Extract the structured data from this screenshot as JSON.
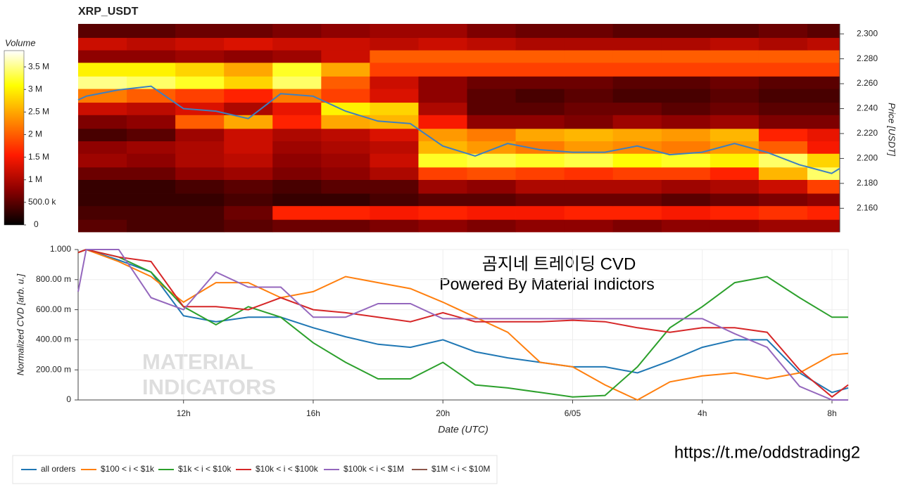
{
  "chart_data": [
    {
      "type": "heatmap",
      "title": "XRP_USDT",
      "ylabel": "Price [USDT]",
      "xlim": [
        8.75,
        32.25
      ],
      "ylim": [
        2.141,
        2.308
      ],
      "yticks": [
        {
          "value": 2.16,
          "label": "2.160"
        },
        {
          "value": 2.18,
          "label": "2.180"
        },
        {
          "value": 2.2,
          "label": "2.200"
        },
        {
          "value": 2.22,
          "label": "2.220"
        },
        {
          "value": 2.24,
          "label": "2.240"
        },
        {
          "value": 2.26,
          "label": "2.260"
        },
        {
          "value": 2.28,
          "label": "2.280"
        },
        {
          "value": 2.3,
          "label": "2.300"
        }
      ],
      "xbins": [
        8.75,
        10.25,
        11.75,
        13.25,
        14.75,
        16.25,
        17.75,
        19.25,
        20.75,
        22.25,
        23.75,
        25.25,
        26.75,
        28.25,
        29.75,
        31.25,
        32.25
      ],
      "ybins": [
        2.141,
        2.151,
        2.162,
        2.172,
        2.183,
        2.193,
        2.204,
        2.214,
        2.224,
        2.235,
        2.245,
        2.256,
        2.266,
        2.277,
        2.287,
        2.297,
        2.308
      ],
      "z": [
        [
          500000,
          400000,
          400000,
          500000,
          600000,
          600000,
          700000,
          800000,
          700000,
          800000,
          800000,
          700000,
          800000,
          800000,
          900000,
          900000
        ],
        [
          400000,
          400000,
          400000,
          600000,
          1600000,
          1600000,
          1500000,
          1600000,
          1500000,
          1500000,
          1600000,
          1600000,
          1500000,
          1600000,
          1700000,
          1600000
        ],
        [
          300000,
          300000,
          300000,
          400000,
          300000,
          300000,
          400000,
          500000,
          500000,
          600000,
          600000,
          600000,
          500000,
          600000,
          700000,
          800000
        ],
        [
          300000,
          300000,
          400000,
          500000,
          400000,
          500000,
          500000,
          900000,
          800000,
          1000000,
          1000000,
          1000000,
          900000,
          1000000,
          1200000,
          1800000
        ],
        [
          600000,
          600000,
          800000,
          900000,
          700000,
          800000,
          1000000,
          1800000,
          1900000,
          1800000,
          1700000,
          1800000,
          1800000,
          1600000,
          2600000,
          3400000
        ],
        [
          900000,
          800000,
          1000000,
          1100000,
          800000,
          900000,
          1200000,
          3200000,
          3300000,
          3200000,
          3300000,
          3100000,
          3200000,
          3000000,
          3400000,
          2800000
        ],
        [
          800000,
          900000,
          1000000,
          1200000,
          900000,
          1000000,
          1100000,
          2600000,
          2400000,
          2200000,
          2400000,
          2300000,
          2200000,
          2400000,
          2000000,
          1500000
        ],
        [
          400000,
          500000,
          900000,
          1200000,
          1000000,
          1100000,
          1300000,
          2400000,
          2200000,
          2500000,
          2600000,
          2500000,
          2400000,
          2600000,
          1600000,
          1400000
        ],
        [
          700000,
          800000,
          2000000,
          2500000,
          1600000,
          2500000,
          2600000,
          1500000,
          800000,
          800000,
          700000,
          900000,
          800000,
          900000,
          700000,
          700000
        ],
        [
          1200000,
          1100000,
          1300000,
          1000000,
          1400000,
          3000000,
          2800000,
          1000000,
          500000,
          500000,
          600000,
          600000,
          500000,
          600000,
          500000,
          500000
        ],
        [
          2200000,
          2000000,
          1800000,
          1600000,
          2200000,
          1800000,
          1300000,
          800000,
          500000,
          400000,
          500000,
          400000,
          400000,
          500000,
          400000,
          400000
        ],
        [
          3500000,
          3400000,
          3200000,
          2800000,
          3400000,
          2000000,
          1200000,
          800000,
          600000,
          600000,
          600000,
          500000,
          500000,
          600000,
          500000,
          500000
        ],
        [
          3000000,
          3000000,
          2800000,
          2500000,
          3200000,
          2500000,
          1800000,
          1800000,
          1800000,
          1800000,
          1800000,
          1800000,
          1800000,
          1800000,
          1800000,
          1800000
        ],
        [
          800000,
          800000,
          900000,
          800000,
          900000,
          1200000,
          2000000,
          2000000,
          2000000,
          2000000,
          2000000,
          2000000,
          2000000,
          2000000,
          2000000,
          2000000
        ],
        [
          1200000,
          1100000,
          1200000,
          1300000,
          1200000,
          1200000,
          1100000,
          1200000,
          1100000,
          1000000,
          1000000,
          1000000,
          1000000,
          1100000,
          1000000,
          1100000
        ],
        [
          500000,
          500000,
          600000,
          600000,
          700000,
          800000,
          900000,
          900000,
          700000,
          600000,
          600000,
          500000,
          500000,
          500000,
          600000,
          500000
        ]
      ],
      "colorbar_title": "Volume",
      "zlim": [
        0,
        3860000
      ],
      "zticks": [
        0,
        {
          "value": 500000,
          "label": "500.0 k"
        },
        {
          "value": 1000000,
          "label": "1 M"
        },
        {
          "value": 1500000,
          "label": "1.5 M"
        },
        {
          "value": 2000000,
          "label": "2 M"
        },
        {
          "value": 2500000,
          "label": "2.5 M"
        },
        {
          "value": 3000000,
          "label": "3 M"
        },
        {
          "value": 3500000,
          "label": "3.5 M"
        }
      ],
      "colorscale": [
        "#000000",
        "#8b0000",
        "#ff1a00",
        "#ff8c00",
        "#ffff00",
        "#ffffff"
      ],
      "price_line": {
        "color": "#3d7fc0",
        "x": [
          8.75,
          9,
          10,
          11,
          12,
          13,
          14,
          15,
          16,
          17,
          18,
          19,
          20,
          21,
          22,
          23,
          24,
          25,
          26,
          27,
          28,
          29,
          30,
          31,
          32,
          32.25
        ],
        "values": [
          2.247,
          2.25,
          2.255,
          2.258,
          2.24,
          2.238,
          2.232,
          2.252,
          2.25,
          2.238,
          2.23,
          2.228,
          2.21,
          2.202,
          2.212,
          2.207,
          2.205,
          2.205,
          2.21,
          2.203,
          2.205,
          2.212,
          2.205,
          2.195,
          2.188,
          2.192
        ]
      }
    },
    {
      "type": "line",
      "xlabel": "Date (UTC)",
      "ylabel": "Normalized CVD [arb. u.]",
      "annotations": [
        "곰지네 트레이딩 CVD",
        "Powered By Material Indictors"
      ],
      "watermark": [
        "MATERIAL",
        "INDICATORS"
      ],
      "xlim": [
        8.75,
        32.5
      ],
      "ylim": [
        0,
        1
      ],
      "xticks": [
        {
          "value": 12,
          "label": "12h"
        },
        {
          "value": 16,
          "label": "16h"
        },
        {
          "value": 20,
          "label": "20h"
        },
        {
          "value": 24,
          "label": "6/05"
        },
        {
          "value": 28,
          "label": "4h"
        },
        {
          "value": 32,
          "label": "8h"
        }
      ],
      "yticks": [
        0,
        {
          "value": 0.2,
          "label": "200.00 m"
        },
        {
          "value": 0.4,
          "label": "400.00 m"
        },
        {
          "value": 0.6,
          "label": "600.00 m"
        },
        {
          "value": 0.8,
          "label": "800.00 m"
        },
        {
          "value": 1,
          "label": "1.000"
        }
      ],
      "grid": true,
      "x": [
        8.75,
        9,
        10,
        11,
        12,
        13,
        14,
        15,
        16,
        17,
        18,
        19,
        20,
        21,
        22,
        23,
        24,
        25,
        26,
        27,
        28,
        29,
        30,
        31,
        32,
        32.5
      ],
      "series": [
        {
          "name": "all orders",
          "color": "#1f77b4",
          "values": [
            0.98,
            1.0,
            0.93,
            0.85,
            0.56,
            0.52,
            0.55,
            0.55,
            0.48,
            0.42,
            0.37,
            0.35,
            0.4,
            0.32,
            0.28,
            0.25,
            0.22,
            0.22,
            0.18,
            0.26,
            0.35,
            0.4,
            0.4,
            0.18,
            0.05,
            0.08
          ]
        },
        {
          "name": "$100 < i < $1k",
          "color": "#ff7f0e",
          "values": [
            0.98,
            1.0,
            0.92,
            0.82,
            0.65,
            0.78,
            0.78,
            0.68,
            0.72,
            0.82,
            0.78,
            0.74,
            0.65,
            0.55,
            0.45,
            0.25,
            0.22,
            0.1,
            0.0,
            0.12,
            0.16,
            0.18,
            0.14,
            0.18,
            0.3,
            0.31
          ]
        },
        {
          "name": "$1k < i < $10k",
          "color": "#2ca02c",
          "values": [
            0.98,
            1.0,
            0.95,
            0.85,
            0.62,
            0.5,
            0.62,
            0.55,
            0.38,
            0.25,
            0.14,
            0.14,
            0.25,
            0.1,
            0.08,
            0.05,
            0.02,
            0.03,
            0.22,
            0.48,
            0.62,
            0.78,
            0.82,
            0.68,
            0.55,
            0.55
          ]
        },
        {
          "name": "$10k < i < $100k",
          "color": "#d62728",
          "values": [
            0.98,
            1.0,
            0.95,
            0.92,
            0.62,
            0.62,
            0.6,
            0.68,
            0.6,
            0.58,
            0.55,
            0.52,
            0.58,
            0.52,
            0.52,
            0.52,
            0.53,
            0.52,
            0.48,
            0.45,
            0.48,
            0.48,
            0.45,
            0.2,
            0.02,
            0.1
          ]
        },
        {
          "name": "$100k < i < $1M",
          "color": "#9467bd",
          "values": [
            0.72,
            1.0,
            1.0,
            0.68,
            0.6,
            0.85,
            0.75,
            0.75,
            0.55,
            0.55,
            0.64,
            0.64,
            0.54,
            0.54,
            0.54,
            0.54,
            0.54,
            0.54,
            0.54,
            0.54,
            0.54,
            0.44,
            0.35,
            0.09,
            0.0,
            0.0
          ]
        },
        {
          "name": "$1M < i < $10M",
          "color": "#8c564b",
          "values": [
            null,
            null,
            null,
            null,
            null,
            null,
            null,
            null,
            null,
            null,
            null,
            null,
            null,
            null,
            null,
            null,
            null,
            null,
            null,
            null,
            null,
            null,
            null,
            null,
            null,
            null
          ]
        }
      ]
    }
  ],
  "footer": "https://t.me/oddstrading2"
}
